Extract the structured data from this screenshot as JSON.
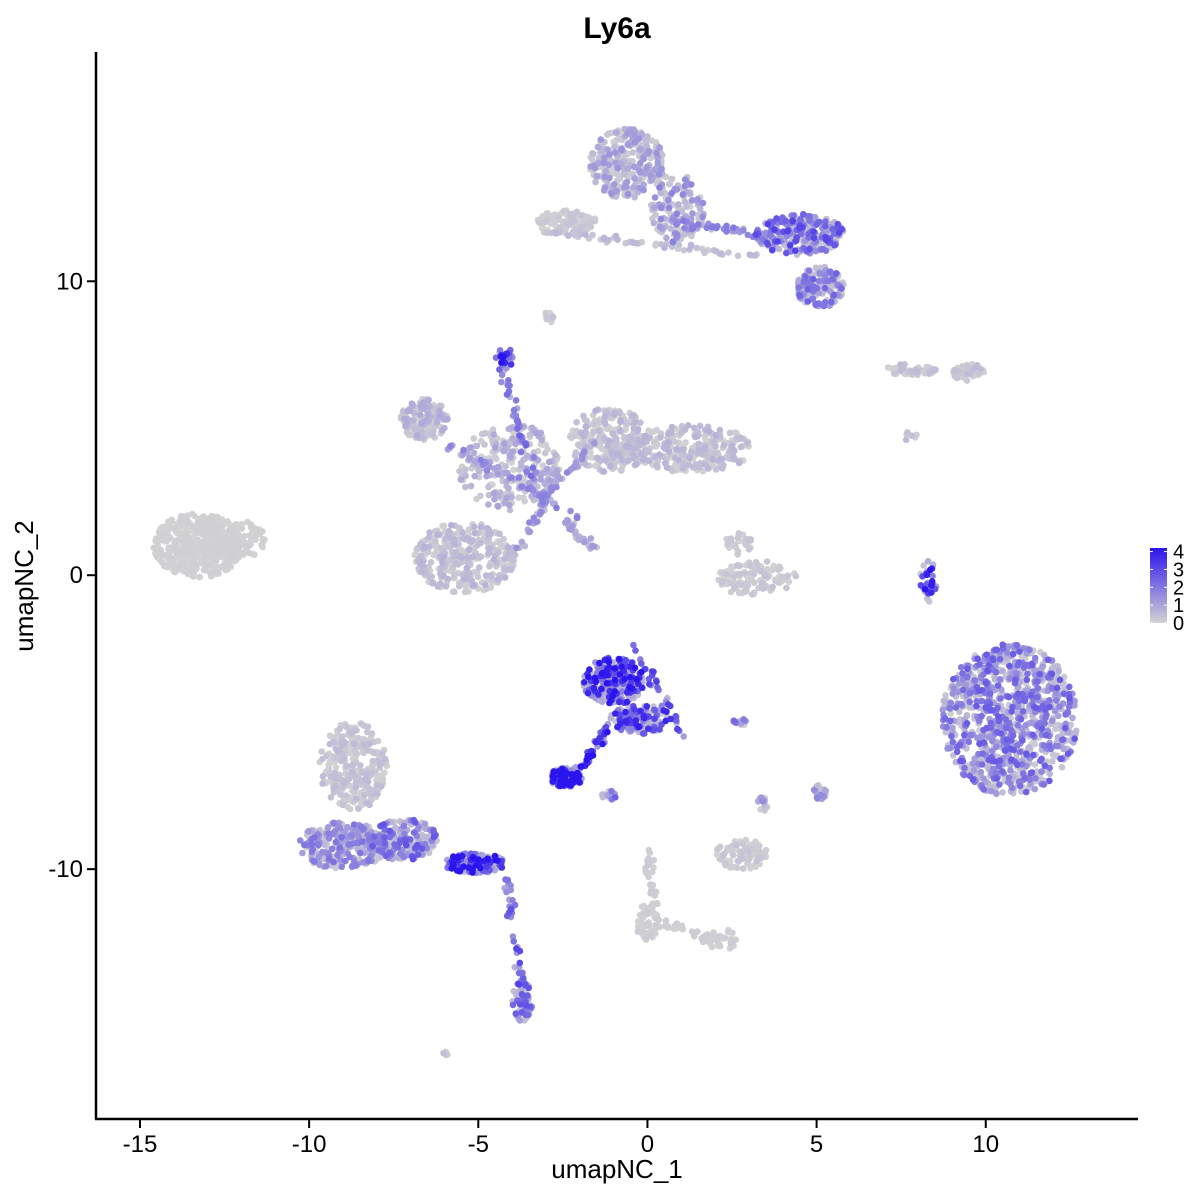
{
  "chart_data": {
    "type": "scatter",
    "title": "Ly6a",
    "xlabel": "umapNC_1",
    "ylabel": "umapNC_2",
    "xlim": [
      -16.3,
      14.5
    ],
    "ylim": [
      -18.5,
      17.8
    ],
    "x_ticks": [
      -15,
      -10,
      -5,
      0,
      5,
      10
    ],
    "x_tick_labels": [
      "-15",
      "-10",
      "-5",
      "0",
      "5",
      "10"
    ],
    "y_ticks": [
      -10,
      0,
      10
    ],
    "y_tick_labels": [
      "-10",
      "0",
      "10"
    ],
    "grid": false,
    "color_scale": {
      "low_color": "#d3d3d3",
      "high_color": "#2b14ee",
      "min": 0,
      "max": 4.2,
      "ticks": [
        0,
        1,
        2,
        3,
        4
      ],
      "tick_labels": [
        "0",
        "1",
        "2",
        "3",
        "4"
      ],
      "legend_position": "right"
    },
    "clusters": [
      {
        "cx": -13.3,
        "cy": 1.0,
        "rx": 1.3,
        "ry": 1.1,
        "n": 420,
        "expr": 0.05
      },
      {
        "cx": -12.2,
        "cy": 1.2,
        "rx": 0.9,
        "ry": 0.7,
        "n": 120,
        "expr": 0.05
      },
      {
        "cx": -6.6,
        "cy": 5.3,
        "rx": 0.7,
        "ry": 0.7,
        "n": 160,
        "expr": 0.5
      },
      {
        "cx": -4.1,
        "cy": 3.7,
        "rx": 1.5,
        "ry": 1.5,
        "n": 280,
        "expr": 0.6
      },
      {
        "cx": -5.4,
        "cy": 0.6,
        "rx": 1.5,
        "ry": 1.2,
        "n": 330,
        "expr": 0.4
      },
      {
        "cx": -1.1,
        "cy": 4.6,
        "rx": 1.2,
        "ry": 1.1,
        "n": 250,
        "expr": 0.4
      },
      {
        "cx": 1.3,
        "cy": 4.3,
        "rx": 1.8,
        "ry": 0.8,
        "n": 260,
        "expr": 0.4
      },
      {
        "cx": -4.2,
        "cy": 7.4,
        "rx": 0.3,
        "ry": 0.3,
        "n": 30,
        "expr": 2.8
      },
      {
        "cx": -0.6,
        "cy": 14.0,
        "rx": 1.1,
        "ry": 1.2,
        "n": 300,
        "expr": 0.8
      },
      {
        "cx": 0.9,
        "cy": 12.5,
        "rx": 0.8,
        "ry": 1.2,
        "n": 150,
        "expr": 1.0
      },
      {
        "cx": 4.5,
        "cy": 11.6,
        "rx": 1.3,
        "ry": 0.7,
        "n": 240,
        "expr": 1.8
      },
      {
        "cx": 5.1,
        "cy": 9.8,
        "rx": 0.7,
        "ry": 0.7,
        "n": 160,
        "expr": 1.4
      },
      {
        "cx": -2.4,
        "cy": 12.0,
        "rx": 0.9,
        "ry": 0.4,
        "n": 110,
        "expr": 0.2
      },
      {
        "cx": 7.8,
        "cy": 7.0,
        "rx": 0.8,
        "ry": 0.2,
        "n": 50,
        "expr": 0.3
      },
      {
        "cx": 9.5,
        "cy": 6.9,
        "rx": 0.5,
        "ry": 0.3,
        "n": 40,
        "expr": 0.3
      },
      {
        "cx": 3.2,
        "cy": -0.1,
        "rx": 1.2,
        "ry": 0.6,
        "n": 110,
        "expr": 0.2
      },
      {
        "cx": 2.7,
        "cy": 1.1,
        "rx": 0.4,
        "ry": 0.4,
        "n": 30,
        "expr": 0.2
      },
      {
        "cx": 8.3,
        "cy": -0.2,
        "rx": 0.25,
        "ry": 0.7,
        "n": 35,
        "expr": 2.5
      },
      {
        "cx": 10.7,
        "cy": -4.9,
        "rx": 2.0,
        "ry": 2.6,
        "n": 950,
        "expr": 1.5
      },
      {
        "cx": -1.0,
        "cy": -3.6,
        "rx": 0.9,
        "ry": 0.8,
        "n": 260,
        "expr": 2.6
      },
      {
        "cx": -0.2,
        "cy": -4.9,
        "rx": 0.9,
        "ry": 0.5,
        "n": 120,
        "expr": 2.3
      },
      {
        "cx": -2.4,
        "cy": -6.9,
        "rx": 0.5,
        "ry": 0.35,
        "n": 110,
        "expr": 3.6
      },
      {
        "cx": -8.7,
        "cy": -6.5,
        "rx": 1.0,
        "ry": 1.5,
        "n": 280,
        "expr": 0.3
      },
      {
        "cx": -9.0,
        "cy": -9.2,
        "rx": 1.3,
        "ry": 0.8,
        "n": 280,
        "expr": 1.2
      },
      {
        "cx": -7.2,
        "cy": -9.0,
        "rx": 1.0,
        "ry": 0.7,
        "n": 180,
        "expr": 1.6
      },
      {
        "cx": -5.1,
        "cy": -9.8,
        "rx": 0.9,
        "ry": 0.35,
        "n": 160,
        "expr": 2.9
      },
      {
        "cx": -3.7,
        "cy": -14.5,
        "rx": 0.3,
        "ry": 0.7,
        "n": 60,
        "expr": 1.6
      },
      {
        "cx": 2.8,
        "cy": -9.5,
        "rx": 0.8,
        "ry": 0.5,
        "n": 90,
        "expr": 0.2
      },
      {
        "cx": 5.1,
        "cy": -7.4,
        "rx": 0.2,
        "ry": 0.3,
        "n": 20,
        "expr": 1.0
      },
      {
        "cx": 3.4,
        "cy": -7.8,
        "rx": 0.15,
        "ry": 0.25,
        "n": 12,
        "expr": 1.0
      },
      {
        "cx": 2.8,
        "cy": -5.0,
        "rx": 0.3,
        "ry": 0.12,
        "n": 12,
        "expr": 1.5
      },
      {
        "cx": -1.1,
        "cy": -7.5,
        "rx": 0.25,
        "ry": 0.2,
        "n": 12,
        "expr": 1.5
      },
      {
        "cx": 0.0,
        "cy": -11.8,
        "rx": 0.35,
        "ry": 0.6,
        "n": 50,
        "expr": 0.1
      },
      {
        "cx": 2.2,
        "cy": -12.4,
        "rx": 0.6,
        "ry": 0.35,
        "n": 30,
        "expr": 0.1
      },
      {
        "cx": -2.9,
        "cy": 8.8,
        "rx": 0.15,
        "ry": 0.25,
        "n": 10,
        "expr": 0.3
      },
      {
        "cx": -6.0,
        "cy": -16.3,
        "rx": 0.1,
        "ry": 0.1,
        "n": 5,
        "expr": 0.3
      },
      {
        "cx": 7.8,
        "cy": 4.7,
        "rx": 0.2,
        "ry": 0.2,
        "n": 6,
        "expr": 0.5
      }
    ],
    "trajectories": [
      {
        "from": [
          -4.3,
          7.2
        ],
        "to": [
          -3.2,
          2.5
        ],
        "n": 50,
        "expr": 1.5
      },
      {
        "from": [
          -6.0,
          4.5
        ],
        "to": [
          -2.0,
          2.0
        ],
        "n": 50,
        "expr": 1.2
      },
      {
        "from": [
          -3.2,
          2.5
        ],
        "to": [
          -1.5,
          4.5
        ],
        "n": 50,
        "expr": 1.0
      },
      {
        "from": [
          -3.0,
          2.6
        ],
        "to": [
          -3.8,
          0.8
        ],
        "n": 30,
        "expr": 1.0
      },
      {
        "from": [
          -2.5,
          1.9
        ],
        "to": [
          -1.5,
          0.8
        ],
        "n": 30,
        "expr": 0.8
      },
      {
        "from": [
          -1.2,
          -5.2
        ],
        "to": [
          -2.0,
          -6.6
        ],
        "n": 40,
        "expr": 3.0
      },
      {
        "from": [
          -4.2,
          -10.3
        ],
        "to": [
          -3.7,
          -13.9
        ],
        "n": 35,
        "expr": 2.0
      },
      {
        "from": [
          0.0,
          -9.3
        ],
        "to": [
          0.2,
          -11.2
        ],
        "n": 30,
        "expr": 0.1
      },
      {
        "from": [
          0.2,
          -11.8
        ],
        "to": [
          2.5,
          -12.5
        ],
        "n": 30,
        "expr": 0.1
      },
      {
        "from": [
          -3.0,
          11.7
        ],
        "to": [
          3.5,
          10.8
        ],
        "n": 60,
        "expr": 0.4
      },
      {
        "from": [
          1.0,
          12.0
        ],
        "to": [
          3.8,
          11.5
        ],
        "n": 40,
        "expr": 1.2
      },
      {
        "from": [
          -0.5,
          -2.2
        ],
        "to": [
          1.1,
          -5.5
        ],
        "n": 30,
        "expr": 2.0
      }
    ]
  }
}
